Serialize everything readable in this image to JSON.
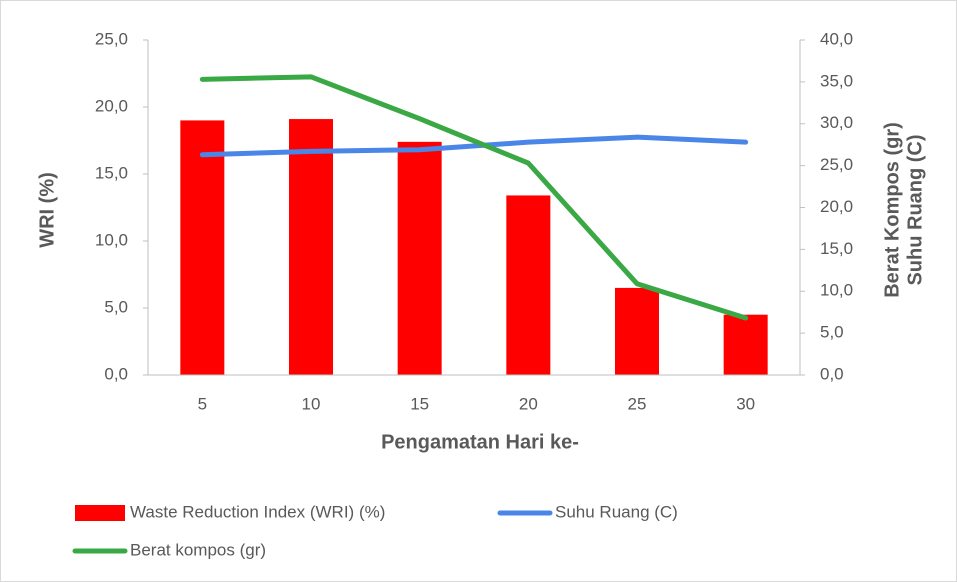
{
  "chart_data": {
    "type": "bar",
    "x_label": "Pengamatan Hari ke-",
    "y_label": "WRI (%)",
    "y2_label": [
      "Berat Kompos (gr)",
      "Suhu Ruang (C)"
    ],
    "categories": [
      "5",
      "10",
      "15",
      "20",
      "25",
      "30"
    ],
    "series": [
      {
        "name": "Waste Reduction Index (WRI) (%)",
        "type": "bar",
        "color": "#ff0000",
        "values": [
          19.0,
          19.1,
          17.4,
          13.4,
          6.5,
          4.5
        ]
      },
      {
        "name": "Suhu Ruang (C)",
        "type": "line",
        "axis": "y2",
        "color": "#4a86e8",
        "values": [
          26.3,
          26.7,
          26.9,
          27.8,
          28.4,
          27.8
        ]
      },
      {
        "name": "Berat kompos (gr)",
        "type": "line",
        "axis": "y2",
        "color": "#3aa845",
        "values": [
          35.3,
          35.6,
          30.6,
          25.3,
          10.9,
          6.8
        ]
      }
    ],
    "ylim": [
      0,
      25
    ],
    "yticks": [
      {
        "value": 0,
        "label": "0,0"
      },
      {
        "value": 5,
        "label": "5,0"
      },
      {
        "value": 10,
        "label": "10,0"
      },
      {
        "value": 15,
        "label": "15,0"
      },
      {
        "value": 20,
        "label": "20,0"
      },
      {
        "value": 25,
        "label": "25,0"
      }
    ],
    "y2lim": [
      0,
      40
    ],
    "y2ticks": [
      {
        "value": 0,
        "label": "0,0"
      },
      {
        "value": 5,
        "label": "5,0"
      },
      {
        "value": 10,
        "label": "10,0"
      },
      {
        "value": 15,
        "label": "15,0"
      },
      {
        "value": 20,
        "label": "20,0"
      },
      {
        "value": 25,
        "label": "25,0"
      },
      {
        "value": 30,
        "label": "30,0"
      },
      {
        "value": 35,
        "label": "35,0"
      },
      {
        "value": 40,
        "label": "40,0"
      }
    ],
    "legend": "bottom"
  }
}
